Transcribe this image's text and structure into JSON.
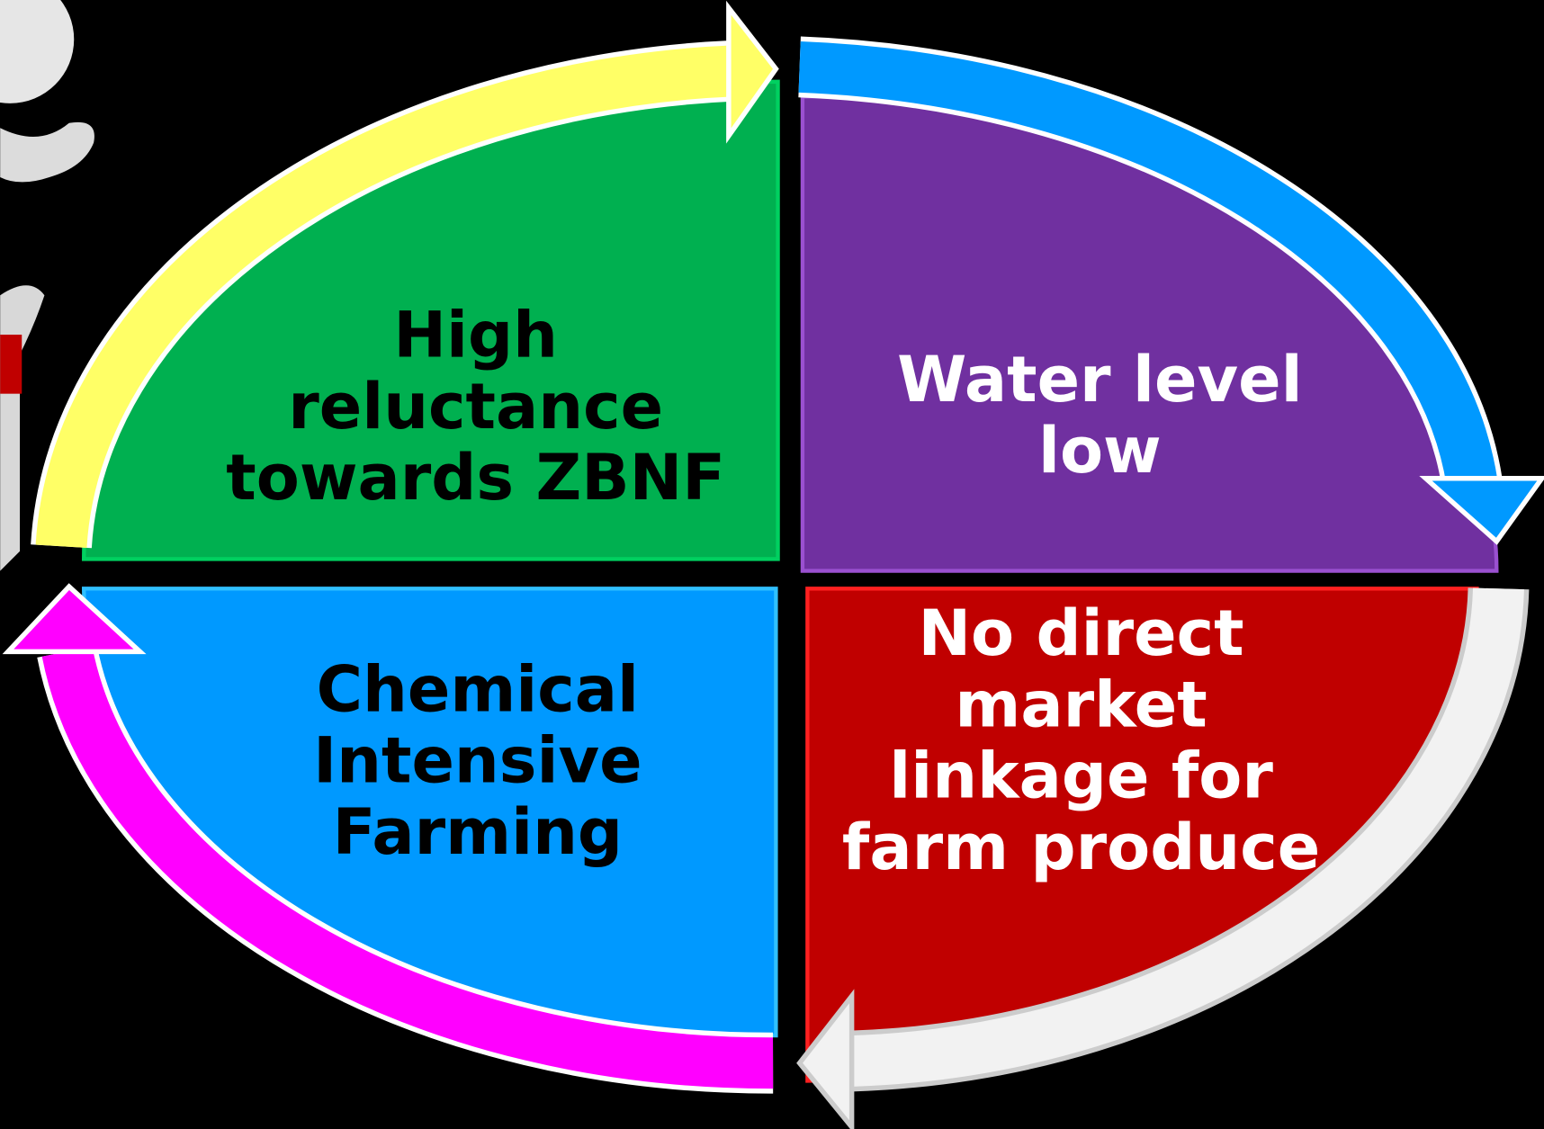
{
  "nodes": [
    {
      "lines": [
        "High",
        "reluctance",
        "towards ZBNF"
      ]
    },
    {
      "lines": [
        "Water level",
        "low"
      ]
    },
    {
      "lines": [
        "No direct",
        "market",
        "linkage for",
        "farm produce"
      ]
    },
    {
      "lines": [
        "Chemical",
        "Intensive",
        "Farming"
      ]
    }
  ]
}
